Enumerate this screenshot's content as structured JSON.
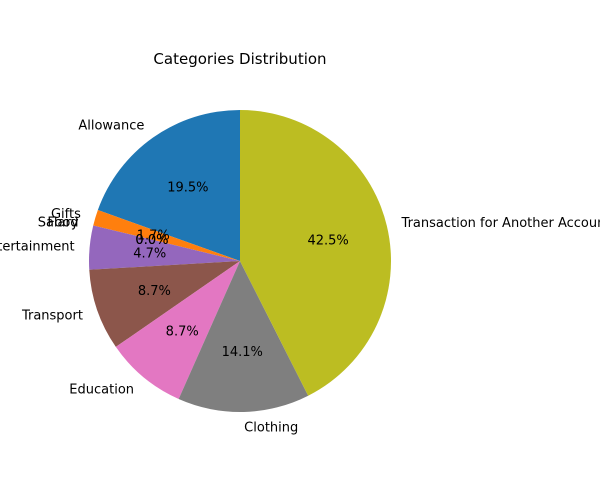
{
  "chart_data": {
    "type": "pie",
    "title": "Categories Distribution",
    "start_angle_deg": 90,
    "direction": "counterclockwise",
    "slices": [
      {
        "label": "Allowance",
        "value": 19.5,
        "pct_text": "19.5%",
        "color": "#1f77b4"
      },
      {
        "label": "Gifts",
        "value": 1.7,
        "pct_text": "1.7%",
        "color": "#ff7f0e"
      },
      {
        "label": "Salary",
        "value": 0.0,
        "pct_text": "0.0%",
        "color": "#2ca02c"
      },
      {
        "label": "Food",
        "value": 0.0,
        "pct_text": "0.0%",
        "color": "#d62728"
      },
      {
        "label": "Entertainment",
        "value": 4.7,
        "pct_text": "4.7%",
        "color": "#9467bd"
      },
      {
        "label": "Transport",
        "value": 8.7,
        "pct_text": "8.7%",
        "color": "#8c564b"
      },
      {
        "label": "Education",
        "value": 8.7,
        "pct_text": "8.7%",
        "color": "#e377c2"
      },
      {
        "label": "Clothing",
        "value": 14.1,
        "pct_text": "14.1%",
        "color": "#7f7f7f"
      },
      {
        "label": "Transaction for Another Account",
        "value": 42.5,
        "pct_text": "42.5%",
        "color": "#bcbd22"
      }
    ]
  }
}
